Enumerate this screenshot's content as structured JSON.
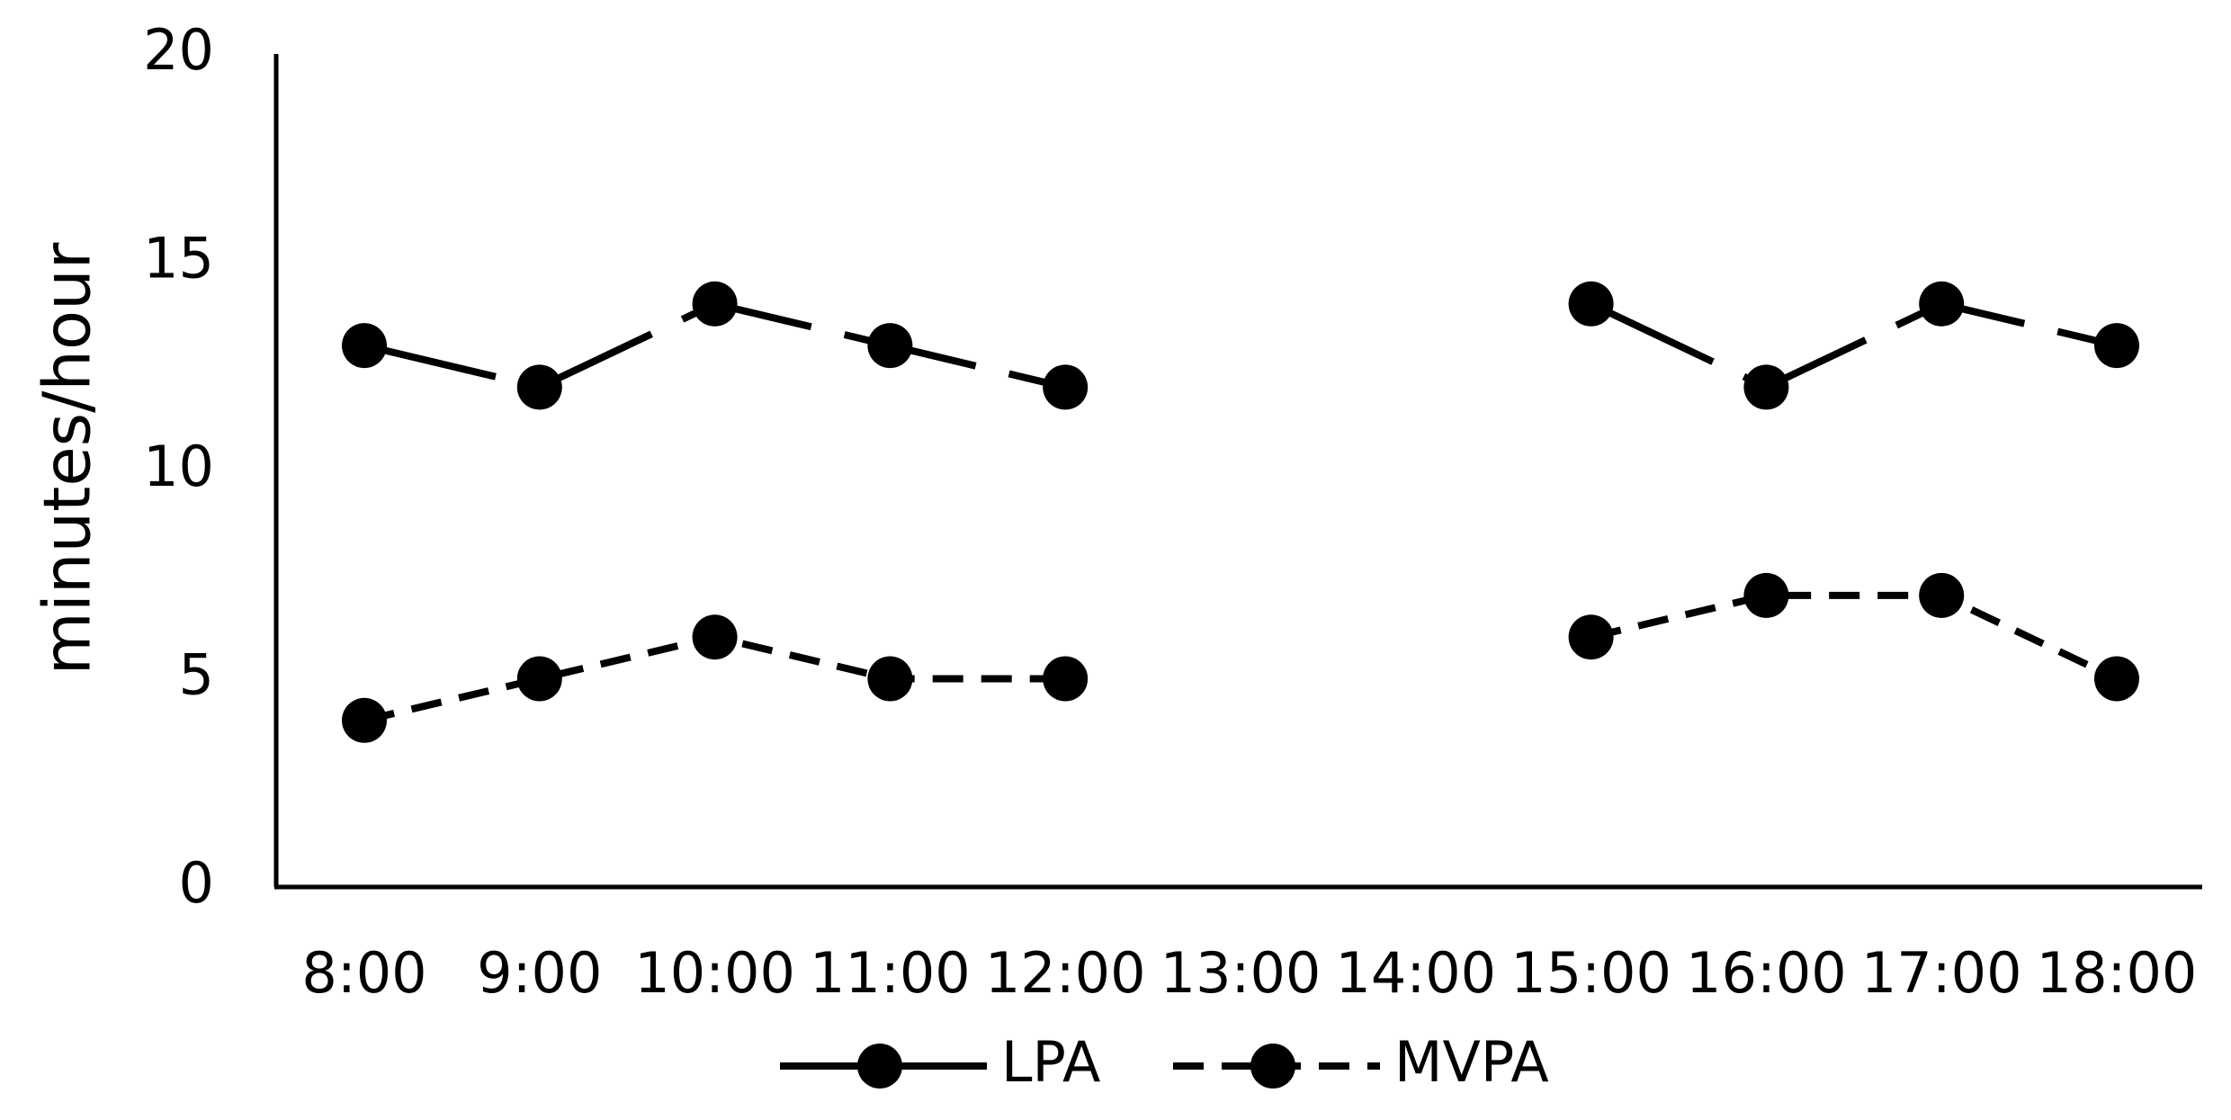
{
  "chart_data": {
    "type": "line",
    "ylabel": "minutes/hour",
    "categories": [
      "8:00",
      "9:00",
      "10:00",
      "11:00",
      "12:00",
      "13:00",
      "14:00",
      "15:00",
      "16:00",
      "17:00",
      "18:00"
    ],
    "series": [
      {
        "name": "LPA",
        "color": "#000000",
        "line_style": "long-dash",
        "values": [
          13,
          12,
          14,
          13,
          12,
          null,
          null,
          14,
          12,
          14,
          13
        ]
      },
      {
        "name": "MVPA",
        "color": "#000000",
        "line_style": "dash",
        "values": [
          4,
          5,
          6,
          5,
          5,
          null,
          null,
          6,
          7,
          7,
          5
        ]
      }
    ],
    "ylim": [
      0,
      20
    ],
    "yticks": [
      0,
      5,
      10,
      15,
      20
    ],
    "grid": false,
    "legend": "bottom"
  }
}
